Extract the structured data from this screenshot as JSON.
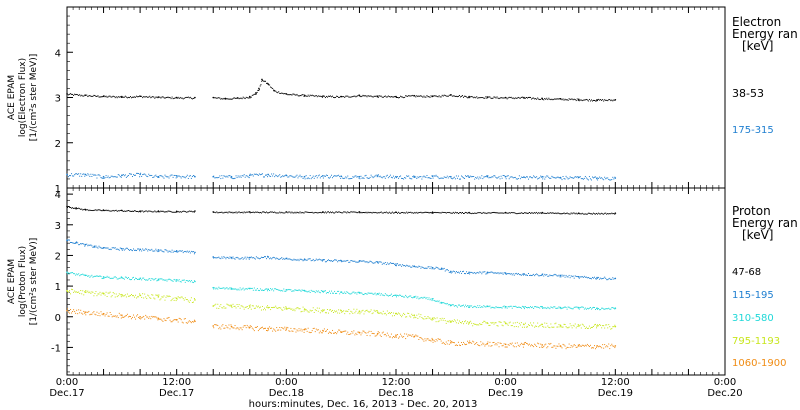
{
  "chart_data": [
    {
      "type": "scatter",
      "panel": "electron",
      "instrument_label": "ACE EPAM",
      "ylabel": "log(Electron Flux)",
      "yunits": "[1/(cm²s ster MeV)]",
      "ylim": [
        1,
        5
      ],
      "yticks": [
        "1",
        "2",
        "3",
        "4"
      ],
      "legend_title": [
        "Electron",
        "Energy ran",
        "[keV]"
      ],
      "series": [
        {
          "name": "38-53",
          "color": "#000000",
          "segments": [
            {
              "x": [
                0,
                6,
                12,
                18,
                24,
                30,
                36,
                42
              ],
              "y": [
                3.08,
                3.05,
                3.03,
                3.02,
                3.03,
                3.01,
                3.0,
                3.0
              ]
            },
            {
              "x": [
                48,
                52,
                56,
                60,
                62,
                63,
                64,
                66,
                68,
                72,
                78,
                84,
                90,
                96,
                102,
                108,
                114,
                120,
                126,
                132,
                138,
                144,
                150,
                156,
                162,
                168,
                174,
                180
              ],
              "y": [
                3.0,
                2.98,
                2.99,
                3.02,
                3.1,
                3.2,
                3.4,
                3.3,
                3.15,
                3.08,
                3.05,
                3.03,
                3.02,
                3.05,
                3.03,
                3.02,
                3.04,
                3.03,
                3.06,
                3.02,
                3.01,
                3.0,
                3.0,
                2.98,
                2.97,
                2.96,
                2.95,
                2.95
              ]
            }
          ]
        },
        {
          "name": "175-315",
          "color": "#1f7fd0",
          "segments": [
            {
              "x": [
                0,
                6,
                12,
                18,
                24,
                30,
                36,
                42
              ],
              "y": [
                1.3,
                1.3,
                1.25,
                1.28,
                1.3,
                1.25,
                1.27,
                1.25
              ]
            },
            {
              "x": [
                48,
                54,
                60,
                66,
                72,
                78,
                84,
                90,
                96,
                102,
                108,
                114,
                120,
                126,
                132,
                138,
                144,
                150,
                156,
                162,
                168,
                174,
                180
              ],
              "y": [
                1.25,
                1.25,
                1.28,
                1.3,
                1.28,
                1.25,
                1.27,
                1.26,
                1.25,
                1.27,
                1.25,
                1.24,
                1.26,
                1.25,
                1.24,
                1.25,
                1.25,
                1.24,
                1.25,
                1.23,
                1.24,
                1.22,
                1.22
              ]
            }
          ]
        }
      ]
    },
    {
      "type": "scatter",
      "panel": "proton",
      "instrument_label": "ACE EPAM",
      "ylabel": "log(Proton Flux)",
      "yunits": "[1/(cm²s ster MeV)]",
      "ylim": [
        -1.9,
        4.2
      ],
      "yticks": [
        "-1",
        "0",
        "1",
        "2",
        "3",
        "4"
      ],
      "legend_title": [
        "Proton",
        "Energy ran",
        "[keV]"
      ],
      "series": [
        {
          "name": "47-68",
          "color": "#000000",
          "segments": [
            {
              "x": [
                0,
                3,
                6,
                12,
                18,
                24,
                30,
                36,
                42
              ],
              "y": [
                3.6,
                3.55,
                3.5,
                3.48,
                3.47,
                3.45,
                3.45,
                3.44,
                3.45
              ]
            },
            {
              "x": [
                48,
                60,
                72,
                84,
                96,
                108,
                120,
                132,
                144,
                156,
                168,
                180
              ],
              "y": [
                3.42,
                3.42,
                3.42,
                3.42,
                3.42,
                3.41,
                3.41,
                3.4,
                3.4,
                3.4,
                3.38,
                3.38
              ]
            }
          ]
        },
        {
          "name": "115-195",
          "color": "#1f7fd0",
          "segments": [
            {
              "x": [
                0,
                3,
                6,
                9,
                12,
                18,
                24,
                30,
                36,
                42
              ],
              "y": [
                2.5,
                2.42,
                2.35,
                2.3,
                2.25,
                2.22,
                2.2,
                2.18,
                2.15,
                2.1
              ]
            },
            {
              "x": [
                48,
                54,
                60,
                66,
                72,
                78,
                84,
                90,
                96,
                102,
                108,
                114,
                120,
                123,
                126,
                132,
                138,
                144,
                150,
                156,
                162,
                168,
                174,
                180
              ],
              "y": [
                1.95,
                1.93,
                1.93,
                1.95,
                1.9,
                1.88,
                1.85,
                1.83,
                1.82,
                1.78,
                1.72,
                1.65,
                1.6,
                1.58,
                1.48,
                1.45,
                1.45,
                1.42,
                1.4,
                1.38,
                1.35,
                1.3,
                1.28,
                1.25
              ]
            }
          ]
        },
        {
          "name": "310-580",
          "color": "#20d8d8",
          "segments": [
            {
              "x": [
                0,
                6,
                12,
                18,
                24,
                30,
                36,
                42
              ],
              "y": [
                1.45,
                1.35,
                1.3,
                1.28,
                1.25,
                1.22,
                1.2,
                1.15
              ]
            },
            {
              "x": [
                48,
                54,
                60,
                66,
                72,
                78,
                84,
                90,
                96,
                102,
                108,
                114,
                120,
                123,
                126,
                132,
                138,
                144,
                150,
                156,
                162,
                168,
                174,
                180
              ],
              "y": [
                0.95,
                0.93,
                0.92,
                0.9,
                0.88,
                0.85,
                0.83,
                0.8,
                0.78,
                0.75,
                0.7,
                0.65,
                0.58,
                0.45,
                0.38,
                0.35,
                0.34,
                0.33,
                0.32,
                0.32,
                0.3,
                0.3,
                0.28,
                0.28
              ]
            }
          ]
        },
        {
          "name": "795-1193",
          "color": "#c8e61e",
          "segments": [
            {
              "x": [
                0,
                6,
                12,
                18,
                24,
                30,
                36,
                42
              ],
              "y": [
                0.85,
                0.8,
                0.75,
                0.72,
                0.7,
                0.65,
                0.6,
                0.55
              ]
            },
            {
              "x": [
                48,
                54,
                60,
                66,
                72,
                78,
                84,
                90,
                96,
                102,
                108,
                114,
                120,
                126,
                132,
                138,
                144,
                150,
                156,
                162,
                168,
                174,
                180
              ],
              "y": [
                0.35,
                0.35,
                0.32,
                0.3,
                0.28,
                0.25,
                0.22,
                0.2,
                0.18,
                0.15,
                0.1,
                0.05,
                -0.05,
                -0.15,
                -0.2,
                -0.2,
                -0.22,
                -0.25,
                -0.25,
                -0.28,
                -0.3,
                -0.3,
                -0.32
              ]
            }
          ]
        },
        {
          "name": "1060-1900",
          "color": "#f08c14",
          "segments": [
            {
              "x": [
                0,
                6,
                12,
                18,
                24,
                30,
                36,
                42
              ],
              "y": [
                0.2,
                0.15,
                0.1,
                0.05,
                0.0,
                -0.05,
                -0.1,
                -0.15
              ]
            },
            {
              "x": [
                48,
                54,
                60,
                66,
                72,
                78,
                84,
                90,
                96,
                102,
                108,
                114,
                120,
                126,
                132,
                138,
                144,
                150,
                156,
                162,
                168,
                174,
                180
              ],
              "y": [
                -0.3,
                -0.32,
                -0.35,
                -0.38,
                -0.4,
                -0.42,
                -0.45,
                -0.5,
                -0.52,
                -0.55,
                -0.6,
                -0.65,
                -0.75,
                -0.85,
                -0.85,
                -0.88,
                -0.9,
                -0.9,
                -0.92,
                -0.95,
                -0.95,
                -0.95,
                -0.95
              ]
            }
          ]
        }
      ]
    }
  ],
  "x_axis": {
    "xlim": [
      0,
      216
    ],
    "major_ticks": [
      0,
      12,
      24,
      36,
      48,
      60,
      72,
      84,
      96
    ],
    "tick_labels": [
      {
        "x": 0,
        "time": "0:00",
        "day": "Dec.17"
      },
      {
        "x": 36,
        "time": "12:00",
        "day": "Dec.17"
      },
      {
        "x": 72,
        "time": "0:00",
        "day": "Dec.18"
      },
      {
        "x": 108,
        "time": "12:00",
        "day": "Dec.18"
      },
      {
        "x": 144,
        "time": "0:00",
        "day": "Dec.19"
      },
      {
        "x": 180,
        "time": "12:00",
        "day": "Dec.19"
      },
      {
        "x": 216,
        "time": "0:00",
        "day": "Dec.20"
      }
    ],
    "xlabel": "hours:minutes, Dec. 16, 2013 - Dec. 20, 2013"
  }
}
